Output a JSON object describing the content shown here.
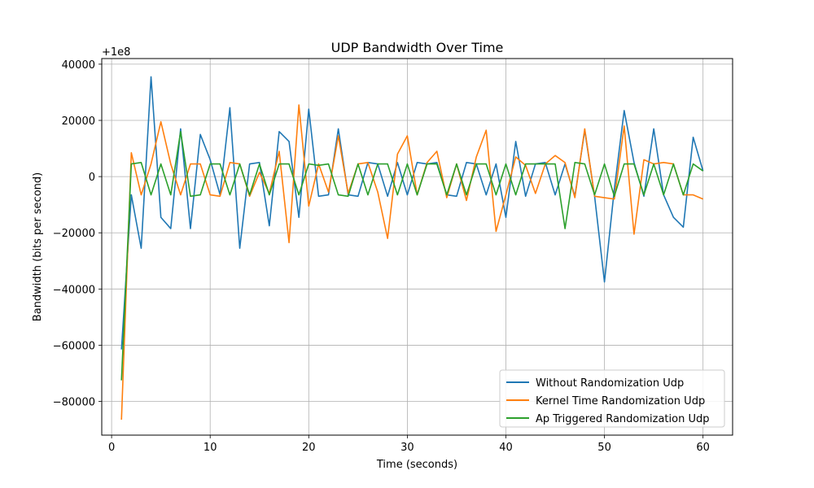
{
  "chart_data": {
    "type": "line",
    "title": "UDP Bandwidth Over Time",
    "xlabel": "Time (seconds)",
    "ylabel": "Bandwidth (bits per second)",
    "offset_text": "+1e8",
    "xlim": [
      -1,
      63
    ],
    "ylim": [
      -92000,
      42000
    ],
    "xticks": [
      0,
      10,
      20,
      30,
      40,
      50,
      60
    ],
    "yticks": [
      -80000,
      -60000,
      -40000,
      -20000,
      0,
      20000,
      40000
    ],
    "ytick_labels": [
      "−80000",
      "−60000",
      "−40000",
      "−20000",
      "0",
      "20000",
      "40000"
    ],
    "grid": true,
    "legend_position": "lower-right",
    "x": [
      1,
      2,
      3,
      4,
      5,
      6,
      7,
      8,
      9,
      10,
      11,
      12,
      13,
      14,
      15,
      16,
      17,
      18,
      19,
      20,
      21,
      22,
      23,
      24,
      25,
      26,
      27,
      28,
      29,
      30,
      31,
      32,
      33,
      34,
      35,
      36,
      37,
      38,
      39,
      40,
      41,
      42,
      43,
      44,
      45,
      46,
      47,
      48,
      49,
      50,
      51,
      52,
      53,
      54,
      55,
      56,
      57,
      58,
      59,
      60
    ],
    "series": [
      {
        "name": "Without Randomization Udp",
        "color": "#1f77b4",
        "values": [
          -61500,
          -6500,
          -25500,
          35500,
          -14500,
          -18500,
          17000,
          -18500,
          15000,
          6000,
          -6500,
          24500,
          -25500,
          4500,
          5000,
          -17500,
          16000,
          12500,
          -14500,
          24000,
          -7000,
          -6500,
          17000,
          -6500,
          -7000,
          5000,
          4500,
          -7000,
          5000,
          -6500,
          5000,
          4500,
          5000,
          -6500,
          -7000,
          5000,
          4500,
          -6500,
          4500,
          -14500,
          12500,
          -7000,
          4500,
          5000,
          -6500,
          4500,
          -7000,
          16500,
          -7000,
          -37500,
          -4500,
          23500,
          5000,
          -7000,
          17000,
          -6500,
          -14500,
          -18000,
          14000,
          2000
        ]
      },
      {
        "name": "Kernel Time Randomization Udp",
        "color": "#ff7f0e",
        "values": [
          -86500,
          8500,
          -6500,
          4500,
          19500,
          4500,
          -6500,
          4500,
          4500,
          -6500,
          -7000,
          5000,
          4500,
          -7000,
          1500,
          -6000,
          9000,
          -23500,
          25500,
          -10500,
          4500,
          -5500,
          14500,
          -6000,
          4500,
          5000,
          -5500,
          -22000,
          8000,
          14500,
          -6500,
          5000,
          9000,
          -7500,
          4500,
          -8500,
          7000,
          16500,
          -19500,
          -6500,
          7000,
          4000,
          -6000,
          4500,
          7500,
          5000,
          -7500,
          17000,
          -7000,
          -7500,
          -8000,
          18000,
          -20500,
          6000,
          4500,
          5000,
          4500,
          -6500,
          -6500,
          -8000
        ]
      },
      {
        "name": "Ap Triggered Randomization Udp",
        "color": "#2ca02c",
        "values": [
          -72500,
          4500,
          5000,
          -6500,
          4500,
          -6500,
          16000,
          -7000,
          -6500,
          4500,
          4500,
          -6500,
          4500,
          -6500,
          4500,
          -6500,
          4500,
          4500,
          -6500,
          4500,
          4000,
          4500,
          -6500,
          -7000,
          4500,
          -6500,
          4500,
          4500,
          -6500,
          4500,
          -6500,
          4500,
          4500,
          -6500,
          4500,
          -6500,
          4500,
          4500,
          -6500,
          4500,
          -6500,
          4500,
          4500,
          4500,
          4500,
          -18500,
          5000,
          4500,
          -6500,
          4500,
          -7000,
          4500,
          4500,
          -6500,
          4500,
          -6500,
          4500,
          -6500,
          4500,
          2000
        ]
      }
    ]
  }
}
